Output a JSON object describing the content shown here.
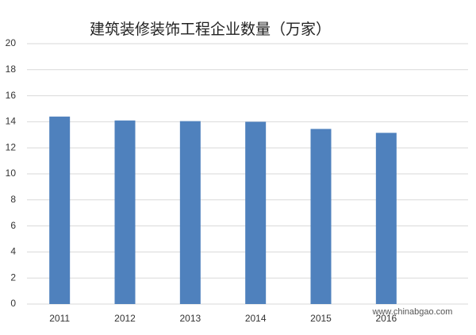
{
  "chart_data": {
    "type": "bar",
    "title": "建筑装修装饰工程企业数量（万家）",
    "categories": [
      "2011",
      "2012",
      "2013",
      "2014",
      "2015",
      "2016"
    ],
    "values": [
      14.4,
      14.1,
      14.05,
      14.0,
      13.45,
      13.15
    ],
    "color": "#4f81bd",
    "ylim": [
      0,
      20
    ],
    "yticks": [
      0,
      2,
      4,
      6,
      8,
      10,
      12,
      14,
      16,
      18,
      20
    ],
    "grid": true,
    "watermark": "www.chinabgao.com"
  }
}
